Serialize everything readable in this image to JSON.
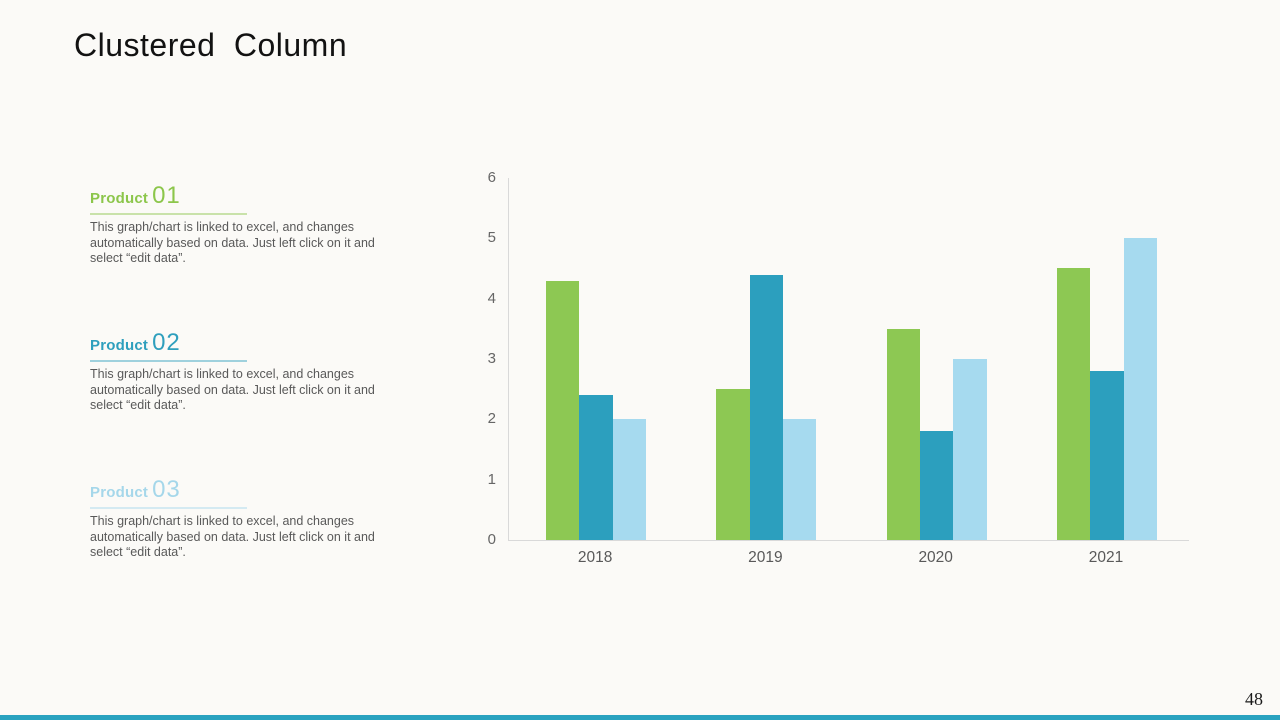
{
  "slide": {
    "title": "Clustered Column",
    "page_number": "48",
    "background_color": "#FBFAF7",
    "footer_bar_color": "#2AA2BF"
  },
  "products": [
    {
      "label": "Product",
      "number": "01",
      "color": "#8CC64B",
      "description_lines": [
        "This graph/chart is linked to excel, and changes",
        "automatically based on data. Just left click on it and",
        "select “edit data”."
      ]
    },
    {
      "label": "Product",
      "number": "02",
      "color": "#2E9FBD",
      "description_lines": [
        "This graph/chart is linked to excel, and changes",
        "automatically based on data. Just left click on it and",
        "select “edit data”."
      ]
    },
    {
      "label": "Product",
      "number": "03",
      "color": "#A5D7EA",
      "description_lines": [
        "This graph/chart is linked to excel, and changes",
        "automatically based on data. Just left click on it and",
        "select “edit data”."
      ]
    }
  ],
  "chart_data": {
    "type": "bar",
    "title": "",
    "xlabel": "",
    "ylabel": "",
    "categories": [
      "2018",
      "2019",
      "2020",
      "2021"
    ],
    "series": [
      {
        "name": "Product 01",
        "color": "#8DC853",
        "values": [
          4.3,
          2.5,
          3.5,
          4.5
        ]
      },
      {
        "name": "Product 02",
        "color": "#2C9FBE",
        "values": [
          2.4,
          4.4,
          1.8,
          2.8
        ]
      },
      {
        "name": "Product 03",
        "color": "#A6DAEF",
        "values": [
          2.0,
          2.0,
          3.0,
          5.0
        ]
      }
    ],
    "ylim": [
      0,
      6
    ],
    "yticks": [
      0,
      1,
      2,
      3,
      4,
      5,
      6
    ],
    "grid": false,
    "legend_position": "none",
    "axis_color": "#D9D9D9",
    "tick_label_color": "#666666"
  }
}
